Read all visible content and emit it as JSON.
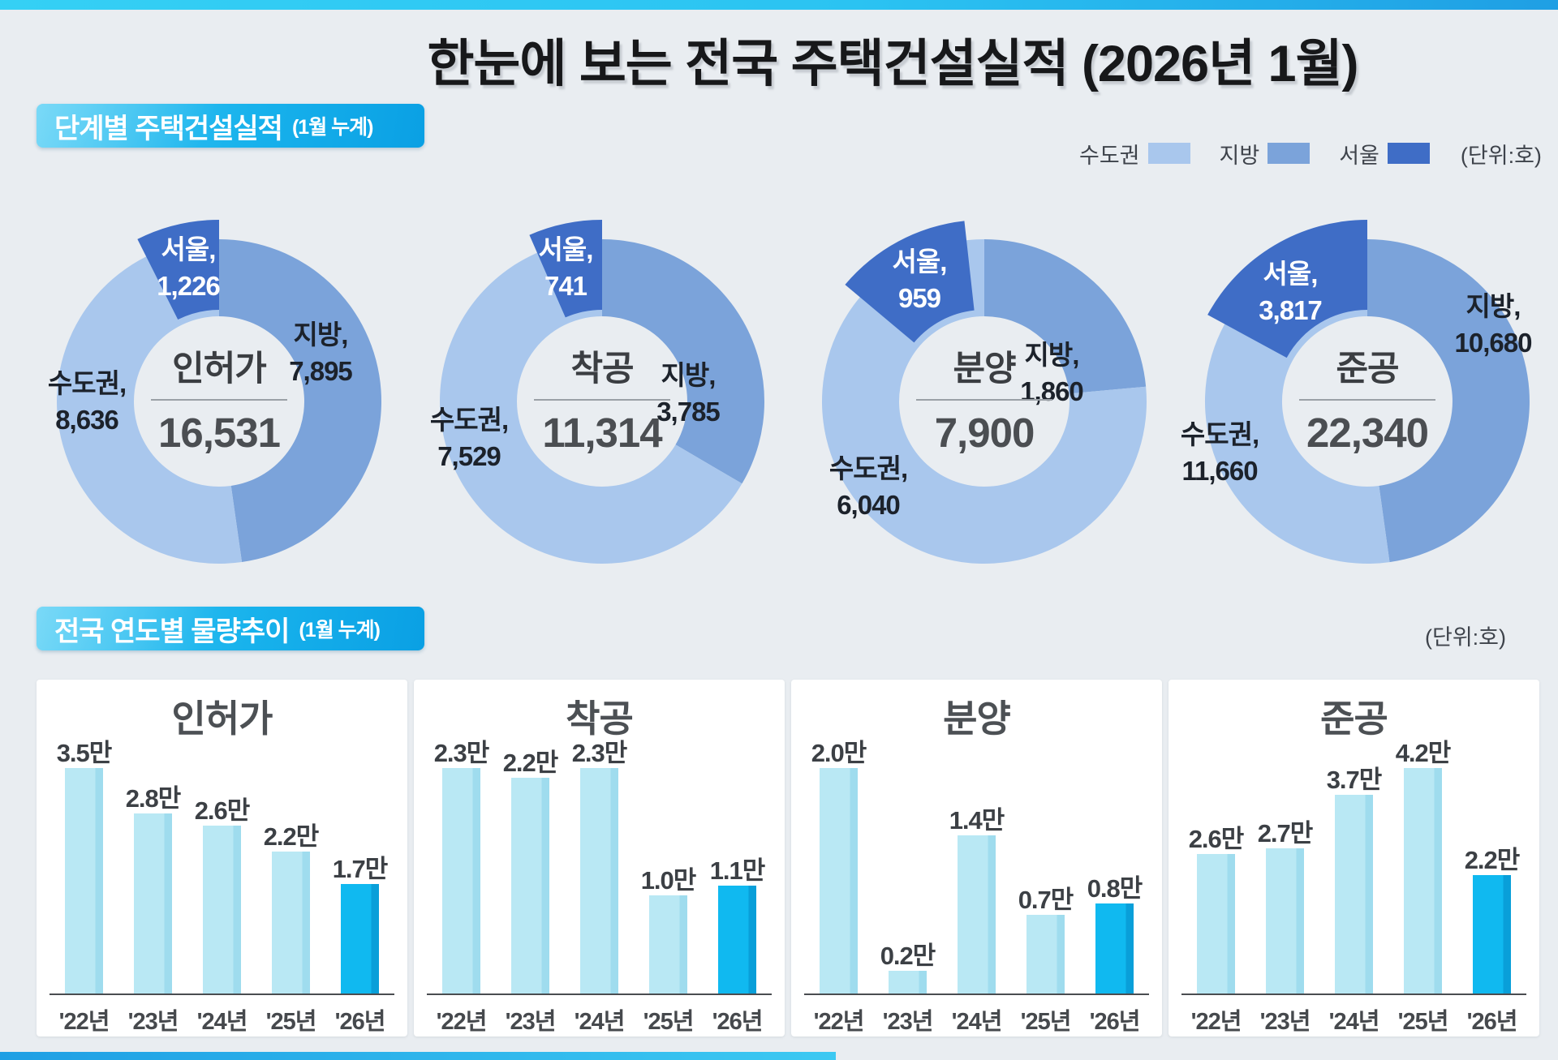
{
  "page": {
    "title": "한눈에 보는 전국 주택건설실적 (2026년 1월)"
  },
  "section1": {
    "heading": "단계별 주택건설실적",
    "heading_suffix": "(1월 누계)",
    "unit_label": "(단위:호)",
    "legend": [
      {
        "label": "수도권",
        "color": "#a9c7ed"
      },
      {
        "label": "지방",
        "color": "#7ba3da"
      },
      {
        "label": "서울",
        "color": "#3f6dc6"
      }
    ]
  },
  "section2": {
    "heading": "전국 연도별 물량추이",
    "heading_suffix": "(1월 누계)",
    "unit_label": "(단위:호)"
  },
  "chart_data": [
    {
      "type": "donut-set",
      "title": "단계별 주택건설실적 (1월 누계)",
      "unit": "호",
      "legend": [
        "수도권",
        "지방",
        "서울"
      ],
      "colors": {
        "sudogwon": "#a9c7ed",
        "jibang": "#7ba3da",
        "seoul": "#3f6dc6"
      },
      "donuts": [
        {
          "name": "인허가",
          "total": 16531,
          "total_label": "16,531",
          "values": {
            "sudogwon": 8636,
            "jibang": 7895,
            "seoul": 1226
          },
          "labels": {
            "sudogwon": {
              "t": "수도권,",
              "v": "8,636"
            },
            "jibang": {
              "t": "지방,",
              "v": "7,895"
            },
            "seoul": {
              "t": "서울,",
              "v": "1,226"
            }
          },
          "seoul_arc_end_deg": 0
        },
        {
          "name": "착공",
          "total": 11314,
          "total_label": "11,314",
          "values": {
            "sudogwon": 7529,
            "jibang": 3785,
            "seoul": 741
          },
          "labels": {
            "sudogwon": {
              "t": "수도권,",
              "v": "7,529"
            },
            "jibang": {
              "t": "지방,",
              "v": "3,785"
            },
            "seoul": {
              "t": "서울,",
              "v": "741"
            }
          },
          "seoul_arc_end_deg": 0
        },
        {
          "name": "분양",
          "total": 7900,
          "total_label": "7,900",
          "values": {
            "sudogwon": 6040,
            "jibang": 1860,
            "seoul": 959
          },
          "labels": {
            "sudogwon": {
              "t": "수도권,",
              "v": "6,040"
            },
            "jibang": {
              "t": "지방,",
              "v": "1,860"
            },
            "seoul": {
              "t": "서울,",
              "v": "959"
            }
          },
          "seoul_arc_end_deg": -6.3
        },
        {
          "name": "준공",
          "total": 22340,
          "total_label": "22,340",
          "values": {
            "sudogwon": 11660,
            "jibang": 10680,
            "seoul": 3817
          },
          "labels": {
            "sudogwon": {
              "t": "수도권,",
              "v": "11,660"
            },
            "jibang": {
              "t": "지방,",
              "v": "10,680"
            },
            "seoul": {
              "t": "서울,",
              "v": "3,817"
            }
          },
          "seoul_arc_end_deg": 0
        }
      ]
    },
    {
      "type": "bar-set",
      "title": "전국 연도별 물량추이 (1월 누계)",
      "unit": "만 호",
      "colors": {
        "bar": "#b9e8f4",
        "bar_edge": "#9fdcee",
        "bar_highlight": "#10b9f0",
        "bar_highlight_edge": "#099fd9"
      },
      "charts": [
        {
          "title": "인허가",
          "categories": [
            "'22년",
            "'23년",
            "'24년",
            "'25년",
            "'26년"
          ],
          "values": [
            3.5,
            2.8,
            2.6,
            2.2,
            1.7
          ],
          "value_labels": [
            "3.5만",
            "2.8만",
            "2.6만",
            "2.2만",
            "1.7만"
          ],
          "highlight_index": 4
        },
        {
          "title": "착공",
          "categories": [
            "'22년",
            "'23년",
            "'24년",
            "'25년",
            "'26년"
          ],
          "values": [
            2.3,
            2.2,
            2.3,
            1.0,
            1.1
          ],
          "value_labels": [
            "2.3만",
            "2.2만",
            "2.3만",
            "1.0만",
            "1.1만"
          ],
          "highlight_index": 4
        },
        {
          "title": "분양",
          "categories": [
            "'22년",
            "'23년",
            "'24년",
            "'25년",
            "'26년"
          ],
          "values": [
            2.0,
            0.2,
            1.4,
            0.7,
            0.8
          ],
          "value_labels": [
            "2.0만",
            "0.2만",
            "1.4만",
            "0.7만",
            "0.8만"
          ],
          "highlight_index": 4
        },
        {
          "title": "준공",
          "categories": [
            "'22년",
            "'23년",
            "'24년",
            "'25년",
            "'26년"
          ],
          "values": [
            2.6,
            2.7,
            3.7,
            4.2,
            2.2
          ],
          "value_labels": [
            "2.6만",
            "2.7만",
            "3.7만",
            "4.2만",
            "2.2만"
          ],
          "highlight_index": 4
        }
      ]
    }
  ]
}
